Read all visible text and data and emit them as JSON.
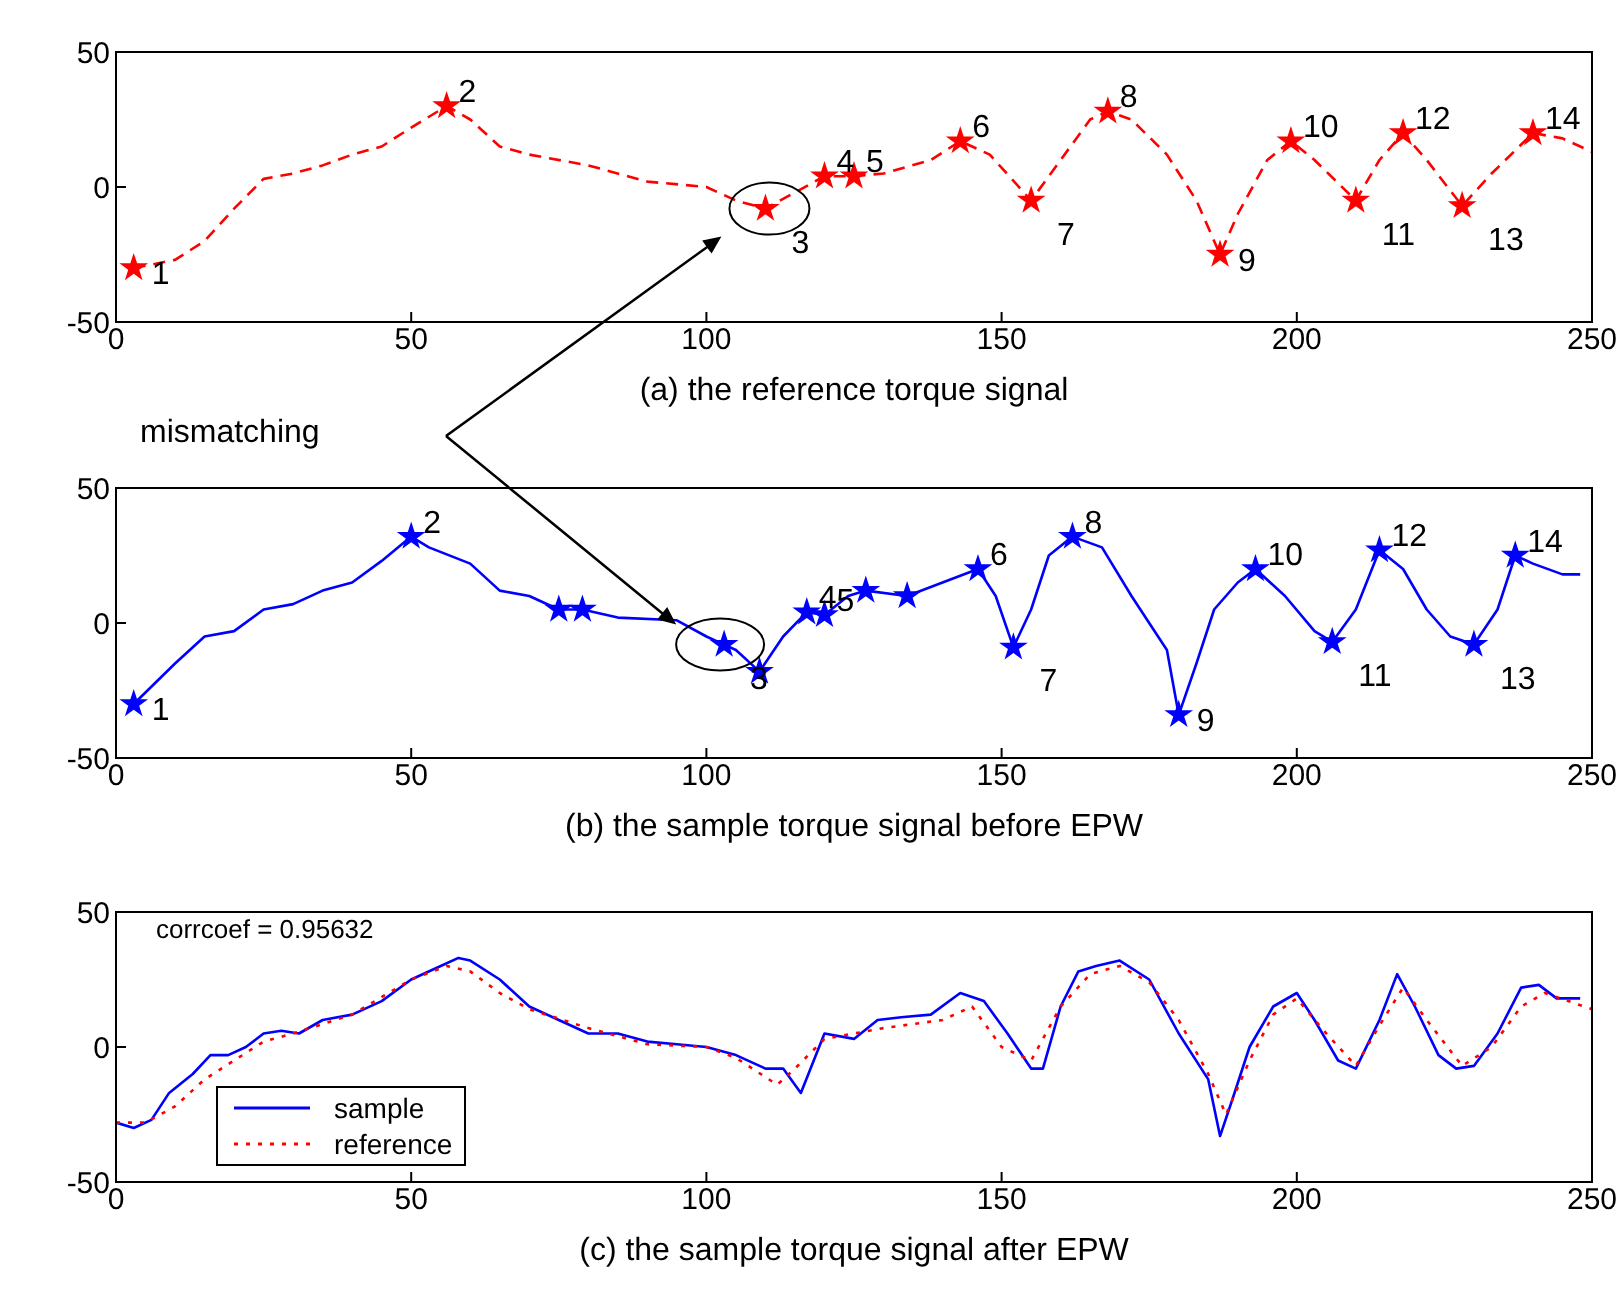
{
  "chart_data": [
    {
      "type": "line",
      "xlabel": "(a) the reference torque signal",
      "xlim": [
        0,
        250
      ],
      "xticks": [
        0,
        50,
        100,
        150,
        200,
        250
      ],
      "ylim": [
        -50,
        50
      ],
      "yticks": [
        -50,
        0,
        50
      ],
      "legend": false,
      "series": [
        {
          "color": "#ff0000",
          "line_style": "dashed",
          "marker": "none",
          "x": [
            3,
            10,
            15,
            20,
            25,
            30,
            35,
            40,
            45,
            50,
            56,
            60,
            65,
            70,
            80,
            90,
            100,
            105,
            110,
            115,
            120,
            125,
            130,
            138,
            143,
            148,
            155,
            160,
            165,
            168,
            172,
            178,
            183,
            187,
            190,
            195,
            199,
            203,
            210,
            214,
            218,
            222,
            228,
            233,
            240,
            245,
            250
          ],
          "values": [
            -30,
            -27,
            -20,
            -8,
            3,
            5,
            8,
            12,
            15,
            22,
            30,
            25,
            15,
            12,
            8,
            2,
            0,
            -5,
            -8,
            -2,
            4,
            4,
            5,
            10,
            17,
            12,
            -5,
            10,
            25,
            28,
            25,
            12,
            -5,
            -25,
            -10,
            10,
            17,
            10,
            -5,
            10,
            20,
            10,
            -7,
            5,
            20,
            18,
            13
          ]
        },
        {
          "type": "scatter",
          "color": "#ff0000",
          "marker": "star",
          "x": [
            3,
            56,
            110,
            120,
            125,
            143,
            155,
            168,
            187,
            199,
            210,
            218,
            228,
            240
          ],
          "values": [
            -30,
            30,
            -8,
            4,
            4,
            17,
            -5,
            28,
            -25,
            17,
            -5,
            20,
            -7,
            20
          ]
        }
      ],
      "annotations": [
        {
          "text": "1",
          "x": 3,
          "y": -30
        },
        {
          "text": "2",
          "x": 56,
          "y": 30
        },
        {
          "text": "3",
          "x": 110,
          "y": -8
        },
        {
          "text": "4",
          "x": 120,
          "y": 4
        },
        {
          "text": "5",
          "x": 125,
          "y": 4
        },
        {
          "text": "6",
          "x": 143,
          "y": 17
        },
        {
          "text": "7",
          "x": 155,
          "y": -5
        },
        {
          "text": "8",
          "x": 168,
          "y": 28
        },
        {
          "text": "9",
          "x": 187,
          "y": -25
        },
        {
          "text": "10",
          "x": 199,
          "y": 17
        },
        {
          "text": "11",
          "x": 210,
          "y": -5
        },
        {
          "text": "12",
          "x": 218,
          "y": 20
        },
        {
          "text": "13",
          "x": 228,
          "y": -7
        },
        {
          "text": "14",
          "x": 240,
          "y": 20
        }
      ]
    },
    {
      "type": "line",
      "xlabel": "(b) the sample torque signal before EPW",
      "xlim": [
        0,
        250
      ],
      "xticks": [
        0,
        50,
        100,
        150,
        200,
        250
      ],
      "ylim": [
        -50,
        50
      ],
      "yticks": [
        -50,
        0,
        50
      ],
      "legend": false,
      "series": [
        {
          "color": "#0000ff",
          "line_style": "solid",
          "marker": "none",
          "x": [
            3,
            10,
            15,
            20,
            25,
            30,
            35,
            40,
            45,
            50,
            53,
            60,
            65,
            70,
            75,
            79,
            85,
            95,
            100,
            103,
            105,
            109,
            113,
            117,
            120,
            124,
            127,
            134,
            140,
            146,
            149,
            152,
            155,
            158,
            162,
            167,
            172,
            178,
            180,
            183,
            186,
            190,
            193,
            198,
            203,
            206,
            210,
            214,
            218,
            222,
            226,
            230,
            234,
            237,
            240,
            245,
            248
          ],
          "values": [
            -30,
            -15,
            -5,
            -3,
            5,
            7,
            12,
            15,
            23,
            32,
            28,
            22,
            12,
            10,
            5,
            5,
            2,
            1,
            -5,
            -8,
            -10,
            -18,
            -5,
            4,
            3,
            10,
            12,
            10,
            15,
            20,
            10,
            -9,
            5,
            25,
            32,
            28,
            10,
            -10,
            -34,
            -15,
            5,
            15,
            20,
            10,
            -3,
            -7,
            5,
            27,
            20,
            5,
            -5,
            -8,
            5,
            25,
            22,
            18,
            18
          ]
        },
        {
          "type": "scatter",
          "color": "#0000ff",
          "marker": "star",
          "x": [
            3,
            50,
            75,
            79,
            103,
            109,
            117,
            120,
            127,
            134,
            146,
            152,
            162,
            180,
            193,
            206,
            214,
            230,
            237
          ],
          "values": [
            -30,
            32,
            5,
            5,
            -8,
            -18,
            4,
            3,
            12,
            10,
            20,
            -9,
            32,
            -34,
            20,
            -7,
            27,
            -8,
            25
          ]
        }
      ],
      "annotations": [
        "mismatching",
        {
          "text": "1",
          "x": 3,
          "y": -30
        },
        {
          "text": "2",
          "x": 50,
          "y": 32
        },
        {
          "text": "3",
          "x": 103,
          "y": -8
        },
        {
          "text": "4",
          "x": 117,
          "y": 4
        },
        {
          "text": "5",
          "x": 120,
          "y": 3
        },
        {
          "text": "6",
          "x": 146,
          "y": 20
        },
        {
          "text": "7",
          "x": 152,
          "y": -9
        },
        {
          "text": "8",
          "x": 162,
          "y": 32
        },
        {
          "text": "9",
          "x": 180,
          "y": -34
        },
        {
          "text": "10",
          "x": 193,
          "y": 20
        },
        {
          "text": "11",
          "x": 206,
          "y": -7
        },
        {
          "text": "12",
          "x": 214,
          "y": 27
        },
        {
          "text": "13",
          "x": 230,
          "y": -8
        },
        {
          "text": "14",
          "x": 237,
          "y": 25
        }
      ]
    },
    {
      "type": "line",
      "xlabel": "(c) the sample torque signal after EPW",
      "xlim": [
        0,
        250
      ],
      "xticks": [
        0,
        50,
        100,
        150,
        200,
        250
      ],
      "ylim": [
        -50,
        50
      ],
      "yticks": [
        -50,
        0,
        50
      ],
      "legend": "bottom left",
      "series": [
        {
          "name": "sample",
          "color": "#0000ff",
          "line_style": "solid",
          "marker": "none",
          "x": [
            0,
            3,
            6,
            9,
            13,
            16,
            19,
            22,
            25,
            28,
            31,
            35,
            40,
            45,
            50,
            55,
            58,
            60,
            65,
            70,
            75,
            80,
            85,
            90,
            95,
            100,
            105,
            110,
            113,
            116,
            120,
            125,
            129,
            133,
            138,
            143,
            147,
            151,
            155,
            157,
            160,
            163,
            166,
            170,
            175,
            180,
            185,
            187,
            189,
            192,
            196,
            200,
            203,
            207,
            210,
            214,
            217,
            220,
            224,
            227,
            230,
            234,
            238,
            241,
            244,
            248
          ],
          "values": [
            -28,
            -30,
            -27,
            -17,
            -10,
            -3,
            -3,
            0,
            5,
            6,
            5,
            10,
            12,
            17,
            25,
            30,
            33,
            32,
            25,
            15,
            10,
            5,
            5,
            2,
            1,
            0,
            -3,
            -8,
            -8,
            -17,
            5,
            3,
            10,
            11,
            12,
            20,
            17,
            5,
            -8,
            -8,
            15,
            28,
            30,
            32,
            25,
            5,
            -12,
            -33,
            -20,
            0,
            15,
            20,
            10,
            -5,
            -8,
            10,
            27,
            15,
            -3,
            -8,
            -7,
            5,
            22,
            23,
            18,
            18
          ]
        },
        {
          "name": "reference",
          "color": "#ff0000",
          "line_style": "dotted",
          "marker": "none",
          "x": [
            0,
            5,
            10,
            15,
            20,
            25,
            30,
            40,
            50,
            56,
            60,
            65,
            70,
            80,
            90,
            100,
            105,
            112,
            115,
            120,
            125,
            130,
            140,
            145,
            150,
            155,
            160,
            165,
            170,
            175,
            180,
            185,
            188,
            192,
            196,
            200,
            205,
            210,
            214,
            218,
            222,
            228,
            233,
            238,
            242,
            246,
            250
          ],
          "values": [
            -28,
            -28,
            -22,
            -12,
            -5,
            2,
            5,
            12,
            25,
            30,
            28,
            20,
            14,
            7,
            1,
            0,
            -4,
            -14,
            -8,
            3,
            5,
            7,
            10,
            15,
            0,
            -5,
            15,
            27,
            30,
            24,
            10,
            -10,
            -25,
            -5,
            12,
            18,
            5,
            -7,
            8,
            22,
            10,
            -7,
            0,
            15,
            20,
            17,
            14
          ]
        }
      ],
      "annotations": [
        "corrcoef = 0.95632"
      ]
    }
  ]
}
